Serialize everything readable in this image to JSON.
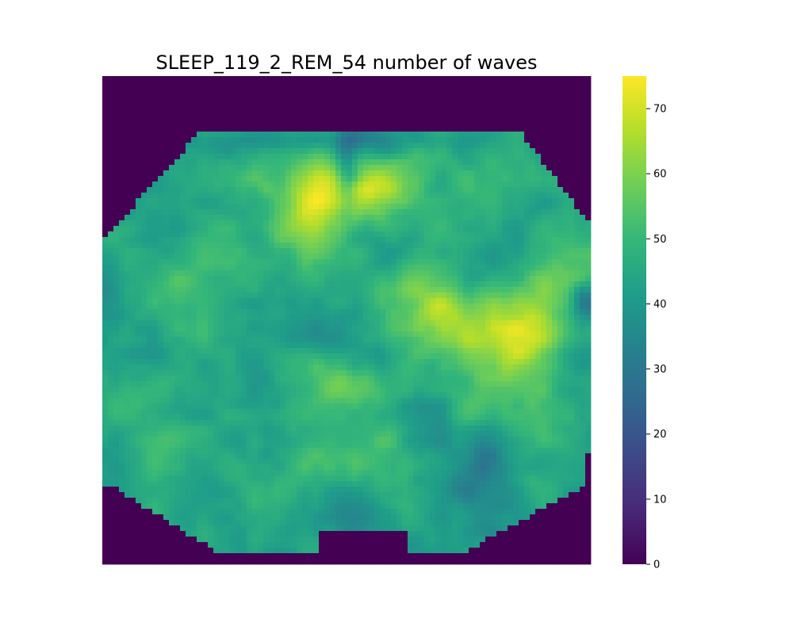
{
  "chart_data": {
    "type": "heatmap",
    "title": "SLEEP_119_2_REM_54 number of waves",
    "xlabel": "",
    "ylabel": "",
    "colormap": "viridis",
    "colorbar": {
      "vmin": 0,
      "vmax": 75,
      "ticks": [
        0,
        10,
        20,
        30,
        40,
        50,
        60,
        70
      ],
      "tick_labels": [
        "0",
        "10",
        "20",
        "30",
        "40",
        "50",
        "60",
        "70"
      ]
    },
    "background_value": 0,
    "typical_range_inside_region": [
      25,
      75
    ],
    "axes_visible": false,
    "regions": {
      "high_activity_centers": [
        "upper-center-left",
        "center-right",
        "center-left"
      ],
      "low_activity_notch": "top-center",
      "right_edge_dip": "right-middle"
    }
  },
  "colors": {
    "viridis": [
      "#440154",
      "#482878",
      "#3e4989",
      "#31688e",
      "#26828e",
      "#1f9e89",
      "#35b779",
      "#6ece58",
      "#b5de2b",
      "#fde725"
    ]
  }
}
